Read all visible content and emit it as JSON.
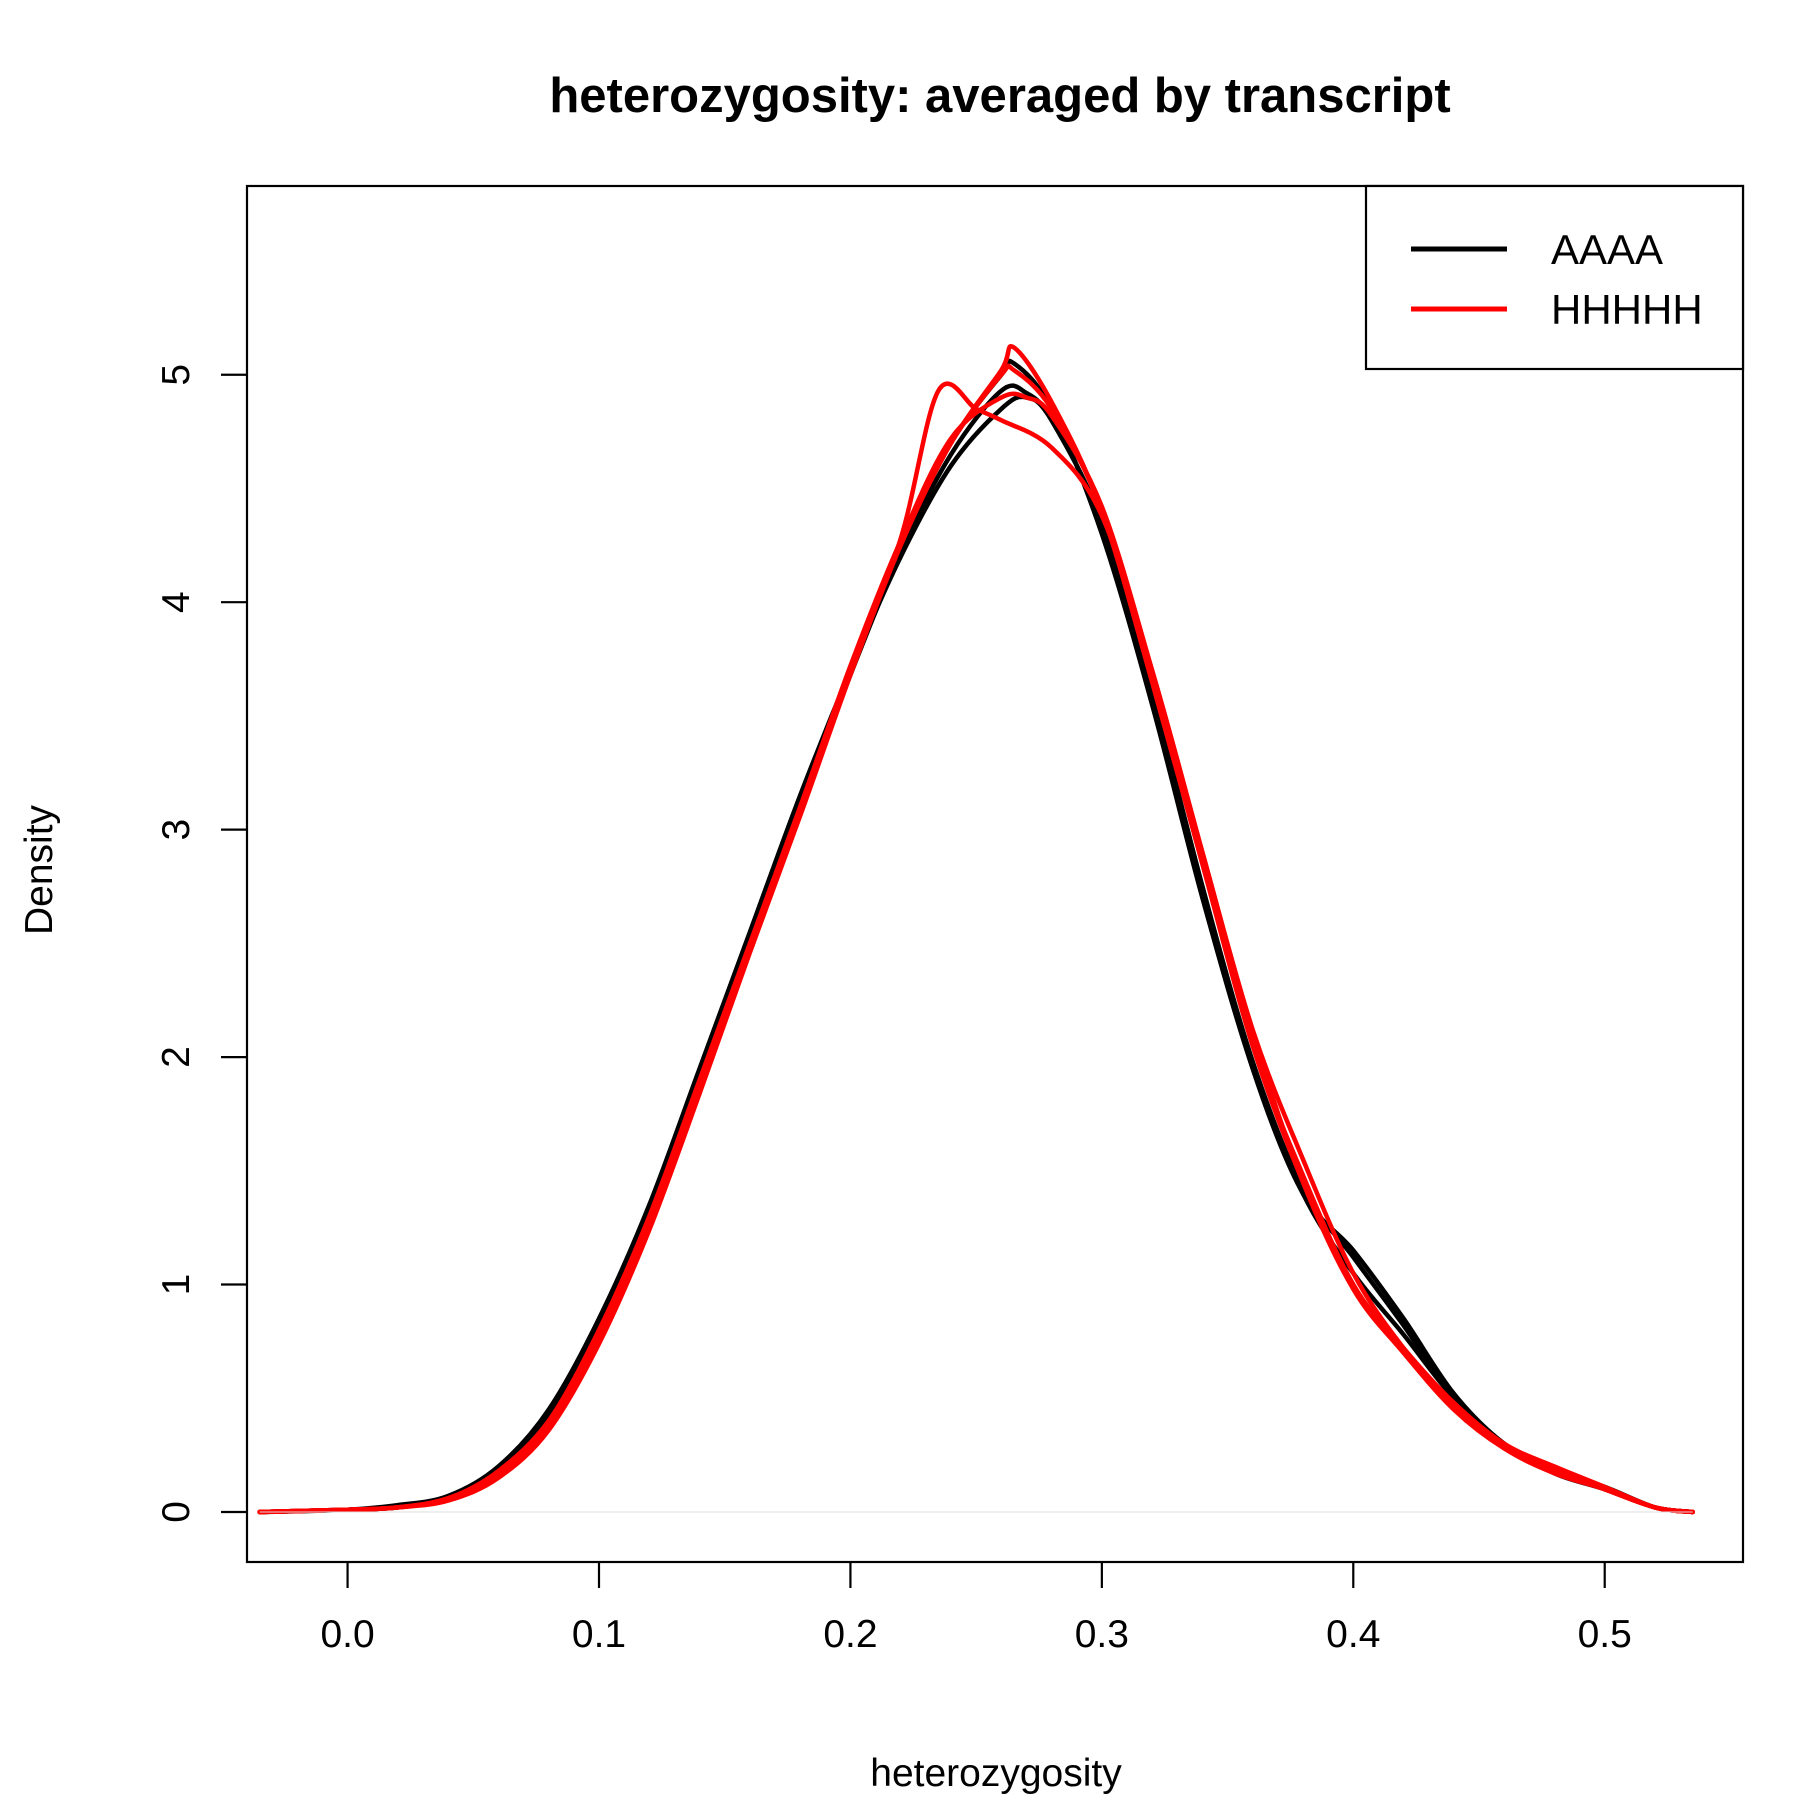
{
  "chart_data": {
    "type": "line",
    "title": "heterozygosity: averaged by transcript",
    "xlabel": "heterozygosity",
    "ylabel": "Density",
    "xlim": [
      -0.04,
      0.555
    ],
    "ylim": [
      -0.22,
      5.83
    ],
    "x_ticks": [
      "0.0",
      "0.1",
      "0.2",
      "0.3",
      "0.4",
      "0.5"
    ],
    "y_ticks": [
      "0",
      "1",
      "2",
      "3",
      "4",
      "5"
    ],
    "grid": false,
    "legend_position": "top-right",
    "legend": [
      {
        "label": "AAAA",
        "color": "#000000"
      },
      {
        "label": "HHHHH",
        "color": "#ff0000"
      }
    ],
    "series": [
      {
        "color": "#000000",
        "points": [
          [
            -0.035,
            0
          ],
          [
            0.0,
            0.01
          ],
          [
            0.02,
            0.03
          ],
          [
            0.04,
            0.07
          ],
          [
            0.06,
            0.2
          ],
          [
            0.08,
            0.45
          ],
          [
            0.1,
            0.85
          ],
          [
            0.12,
            1.35
          ],
          [
            0.14,
            1.95
          ],
          [
            0.16,
            2.55
          ],
          [
            0.18,
            3.15
          ],
          [
            0.2,
            3.7
          ],
          [
            0.22,
            4.2
          ],
          [
            0.24,
            4.6
          ],
          [
            0.26,
            4.85
          ],
          [
            0.27,
            4.9
          ],
          [
            0.28,
            4.8
          ],
          [
            0.3,
            4.35
          ],
          [
            0.32,
            3.6
          ],
          [
            0.34,
            2.75
          ],
          [
            0.36,
            1.95
          ],
          [
            0.38,
            1.4
          ],
          [
            0.4,
            1.15
          ],
          [
            0.42,
            0.85
          ],
          [
            0.44,
            0.52
          ],
          [
            0.46,
            0.3
          ],
          [
            0.48,
            0.18
          ],
          [
            0.5,
            0.11
          ],
          [
            0.52,
            0.02
          ],
          [
            0.535,
            0
          ]
        ]
      },
      {
        "color": "#000000",
        "points": [
          [
            -0.035,
            0
          ],
          [
            0.0,
            0.01
          ],
          [
            0.02,
            0.02
          ],
          [
            0.04,
            0.06
          ],
          [
            0.06,
            0.18
          ],
          [
            0.08,
            0.42
          ],
          [
            0.1,
            0.82
          ],
          [
            0.12,
            1.32
          ],
          [
            0.14,
            1.92
          ],
          [
            0.16,
            2.52
          ],
          [
            0.18,
            3.12
          ],
          [
            0.2,
            3.7
          ],
          [
            0.22,
            4.25
          ],
          [
            0.24,
            4.7
          ],
          [
            0.26,
            5.0
          ],
          [
            0.265,
            5.05
          ],
          [
            0.28,
            4.85
          ],
          [
            0.3,
            4.3
          ],
          [
            0.32,
            3.55
          ],
          [
            0.34,
            2.7
          ],
          [
            0.36,
            1.95
          ],
          [
            0.38,
            1.4
          ],
          [
            0.4,
            1.05
          ],
          [
            0.42,
            0.78
          ],
          [
            0.44,
            0.5
          ],
          [
            0.46,
            0.3
          ],
          [
            0.48,
            0.18
          ],
          [
            0.5,
            0.1
          ],
          [
            0.52,
            0.02
          ],
          [
            0.535,
            0
          ]
        ]
      },
      {
        "color": "#000000",
        "points": [
          [
            -0.035,
            0
          ],
          [
            0.0,
            0.01
          ],
          [
            0.02,
            0.02
          ],
          [
            0.04,
            0.06
          ],
          [
            0.06,
            0.17
          ],
          [
            0.08,
            0.4
          ],
          [
            0.1,
            0.8
          ],
          [
            0.12,
            1.3
          ],
          [
            0.14,
            1.9
          ],
          [
            0.16,
            2.5
          ],
          [
            0.18,
            3.1
          ],
          [
            0.2,
            3.68
          ],
          [
            0.22,
            4.22
          ],
          [
            0.24,
            4.65
          ],
          [
            0.26,
            4.93
          ],
          [
            0.27,
            4.92
          ],
          [
            0.28,
            4.8
          ],
          [
            0.3,
            4.35
          ],
          [
            0.32,
            3.6
          ],
          [
            0.34,
            2.75
          ],
          [
            0.36,
            1.98
          ],
          [
            0.38,
            1.42
          ],
          [
            0.4,
            1.12
          ],
          [
            0.42,
            0.82
          ],
          [
            0.44,
            0.5
          ],
          [
            0.46,
            0.3
          ],
          [
            0.48,
            0.17
          ],
          [
            0.5,
            0.1
          ],
          [
            0.52,
            0.02
          ],
          [
            0.535,
            0
          ]
        ]
      },
      {
        "color": "#ff0000",
        "points": [
          [
            -0.035,
            0
          ],
          [
            0.0,
            0.01
          ],
          [
            0.02,
            0.02
          ],
          [
            0.04,
            0.06
          ],
          [
            0.06,
            0.18
          ],
          [
            0.08,
            0.4
          ],
          [
            0.1,
            0.78
          ],
          [
            0.12,
            1.28
          ],
          [
            0.14,
            1.88
          ],
          [
            0.16,
            2.48
          ],
          [
            0.18,
            3.08
          ],
          [
            0.2,
            3.7
          ],
          [
            0.22,
            4.28
          ],
          [
            0.235,
            4.93
          ],
          [
            0.25,
            4.85
          ],
          [
            0.26,
            4.8
          ],
          [
            0.28,
            4.68
          ],
          [
            0.3,
            4.38
          ],
          [
            0.32,
            3.7
          ],
          [
            0.34,
            2.9
          ],
          [
            0.36,
            2.1
          ],
          [
            0.38,
            1.45
          ],
          [
            0.4,
            0.98
          ],
          [
            0.42,
            0.7
          ],
          [
            0.44,
            0.45
          ],
          [
            0.46,
            0.28
          ],
          [
            0.48,
            0.18
          ],
          [
            0.5,
            0.1
          ],
          [
            0.52,
            0.02
          ],
          [
            0.535,
            0
          ]
        ]
      },
      {
        "color": "#ff0000",
        "points": [
          [
            -0.035,
            0
          ],
          [
            0.0,
            0.01
          ],
          [
            0.02,
            0.02
          ],
          [
            0.04,
            0.05
          ],
          [
            0.06,
            0.15
          ],
          [
            0.08,
            0.36
          ],
          [
            0.1,
            0.74
          ],
          [
            0.12,
            1.24
          ],
          [
            0.14,
            1.84
          ],
          [
            0.16,
            2.46
          ],
          [
            0.18,
            3.06
          ],
          [
            0.2,
            3.68
          ],
          [
            0.22,
            4.25
          ],
          [
            0.24,
            4.7
          ],
          [
            0.26,
            5.02
          ],
          [
            0.265,
            5.12
          ],
          [
            0.28,
            4.88
          ],
          [
            0.3,
            4.4
          ],
          [
            0.32,
            3.65
          ],
          [
            0.34,
            2.85
          ],
          [
            0.36,
            2.05
          ],
          [
            0.38,
            1.48
          ],
          [
            0.4,
            1.0
          ],
          [
            0.42,
            0.72
          ],
          [
            0.44,
            0.48
          ],
          [
            0.46,
            0.3
          ],
          [
            0.48,
            0.2
          ],
          [
            0.5,
            0.11
          ],
          [
            0.52,
            0.02
          ],
          [
            0.535,
            0
          ]
        ]
      },
      {
        "color": "#ff0000",
        "points": [
          [
            -0.035,
            0
          ],
          [
            0.0,
            0.01
          ],
          [
            0.02,
            0.02
          ],
          [
            0.04,
            0.06
          ],
          [
            0.06,
            0.17
          ],
          [
            0.08,
            0.38
          ],
          [
            0.1,
            0.76
          ],
          [
            0.12,
            1.26
          ],
          [
            0.14,
            1.86
          ],
          [
            0.16,
            2.47
          ],
          [
            0.18,
            3.07
          ],
          [
            0.2,
            3.7
          ],
          [
            0.22,
            4.27
          ],
          [
            0.24,
            4.72
          ],
          [
            0.26,
            4.9
          ],
          [
            0.27,
            4.9
          ],
          [
            0.28,
            4.82
          ],
          [
            0.3,
            4.42
          ],
          [
            0.32,
            3.7
          ],
          [
            0.34,
            2.9
          ],
          [
            0.36,
            2.12
          ],
          [
            0.38,
            1.55
          ],
          [
            0.4,
            1.05
          ],
          [
            0.42,
            0.72
          ],
          [
            0.44,
            0.47
          ],
          [
            0.46,
            0.29
          ],
          [
            0.48,
            0.19
          ],
          [
            0.5,
            0.1
          ],
          [
            0.52,
            0.02
          ],
          [
            0.535,
            0
          ]
        ]
      },
      {
        "color": "#ff0000",
        "points": [
          [
            -0.035,
            0
          ],
          [
            0.0,
            0.01
          ],
          [
            0.02,
            0.02
          ],
          [
            0.04,
            0.06
          ],
          [
            0.06,
            0.17
          ],
          [
            0.08,
            0.4
          ],
          [
            0.1,
            0.8
          ],
          [
            0.12,
            1.3
          ],
          [
            0.14,
            1.9
          ],
          [
            0.16,
            2.5
          ],
          [
            0.18,
            3.1
          ],
          [
            0.2,
            3.72
          ],
          [
            0.22,
            4.27
          ],
          [
            0.24,
            4.7
          ],
          [
            0.26,
            5.0
          ],
          [
            0.265,
            5.02
          ],
          [
            0.28,
            4.85
          ],
          [
            0.3,
            4.4
          ],
          [
            0.32,
            3.65
          ],
          [
            0.34,
            2.85
          ],
          [
            0.36,
            2.05
          ],
          [
            0.38,
            1.45
          ],
          [
            0.4,
            0.99
          ],
          [
            0.42,
            0.7
          ],
          [
            0.44,
            0.46
          ],
          [
            0.46,
            0.28
          ],
          [
            0.48,
            0.17
          ],
          [
            0.5,
            0.1
          ],
          [
            0.52,
            0.02
          ],
          [
            0.535,
            0
          ]
        ]
      }
    ]
  }
}
